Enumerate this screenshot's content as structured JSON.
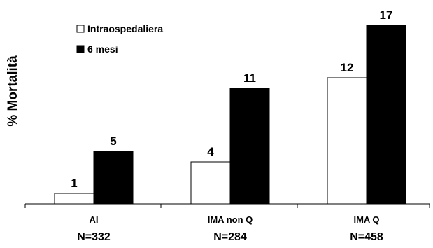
{
  "chart_data": {
    "type": "bar",
    "ylabel": "% Mortalità",
    "categories": [
      "AI",
      "IMA non Q",
      "IMA Q"
    ],
    "sample_sizes": [
      "N=332",
      "N=284",
      "N=458"
    ],
    "series": [
      {
        "name": "Intraospedaliera",
        "values": [
          1,
          4,
          12
        ],
        "color": "#ffffff"
      },
      {
        "name": "6 mesi",
        "values": [
          5,
          11,
          17
        ],
        "color": "#000000"
      }
    ],
    "ylim": [
      0,
      18
    ],
    "grid": false,
    "legend_position": "top-left"
  }
}
